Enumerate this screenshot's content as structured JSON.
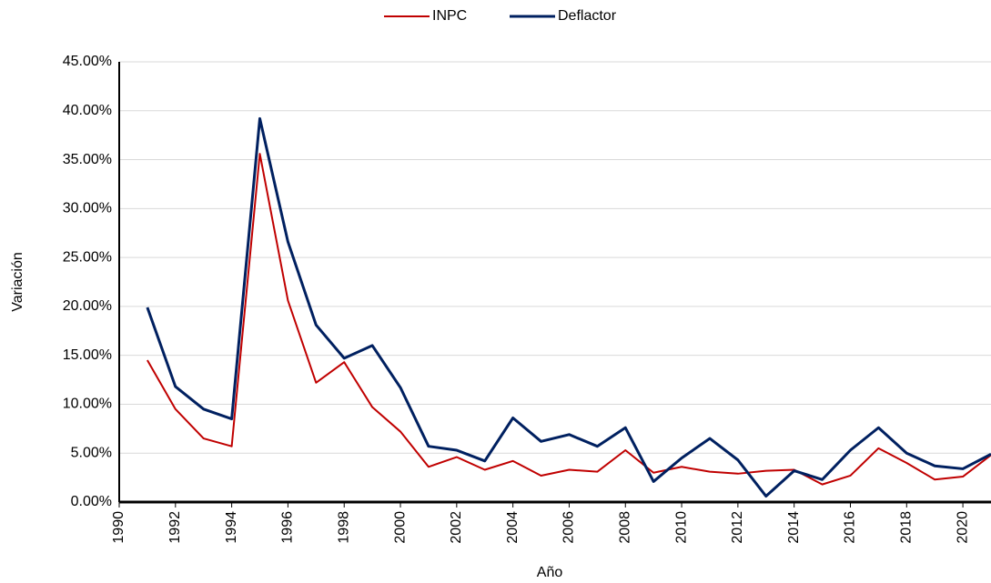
{
  "chart_data": {
    "type": "line",
    "x_label": "Año",
    "y_label": "Variación",
    "x": [
      1991,
      1992,
      1993,
      1994,
      1995,
      1996,
      1997,
      1998,
      1999,
      2000,
      2001,
      2002,
      2003,
      2004,
      2005,
      2006,
      2007,
      2008,
      2009,
      2010,
      2011,
      2012,
      2013,
      2014,
      2015,
      2016,
      2017,
      2018,
      2019,
      2020,
      2021
    ],
    "series": [
      {
        "name": "INPC",
        "color": "#c00000",
        "values": [
          14.5,
          9.5,
          6.5,
          5.7,
          35.6,
          20.6,
          12.2,
          14.3,
          9.7,
          7.2,
          3.6,
          4.6,
          3.3,
          4.2,
          2.7,
          3.3,
          3.1,
          5.3,
          3.0,
          3.6,
          3.1,
          2.9,
          3.2,
          3.3,
          1.8,
          2.7,
          5.5,
          4.0,
          2.3,
          2.6,
          4.8
        ]
      },
      {
        "name": "Deflactor",
        "color": "#002060",
        "values": [
          19.9,
          11.8,
          9.5,
          8.5,
          39.2,
          26.6,
          18.1,
          14.7,
          16.0,
          11.7,
          5.7,
          5.3,
          4.2,
          8.6,
          6.2,
          6.9,
          5.7,
          7.6,
          2.1,
          4.5,
          6.5,
          4.3,
          0.6,
          3.2,
          2.3,
          5.3,
          7.6,
          5.0,
          3.7,
          3.4,
          4.9
        ]
      }
    ],
    "xlim": [
      1990,
      2021
    ],
    "xticks": [
      1990,
      1992,
      1994,
      1996,
      1998,
      2000,
      2002,
      2004,
      2006,
      2008,
      2010,
      2012,
      2014,
      2016,
      2018,
      2020
    ],
    "ylim": [
      0,
      45
    ],
    "yticks": [
      {
        "value": 0,
        "label": "0.00%"
      },
      {
        "value": 5,
        "label": "5.00%"
      },
      {
        "value": 10,
        "label": "10.00%"
      },
      {
        "value": 15,
        "label": "15.00%"
      },
      {
        "value": 20,
        "label": "20.00%"
      },
      {
        "value": 25,
        "label": "25.00%"
      },
      {
        "value": 30,
        "label": "30.00%"
      },
      {
        "value": 35,
        "label": "35.00%"
      },
      {
        "value": 40,
        "label": "40.00%"
      },
      {
        "value": 45,
        "label": "45.00%"
      }
    ],
    "grid": true,
    "legend": "top"
  }
}
